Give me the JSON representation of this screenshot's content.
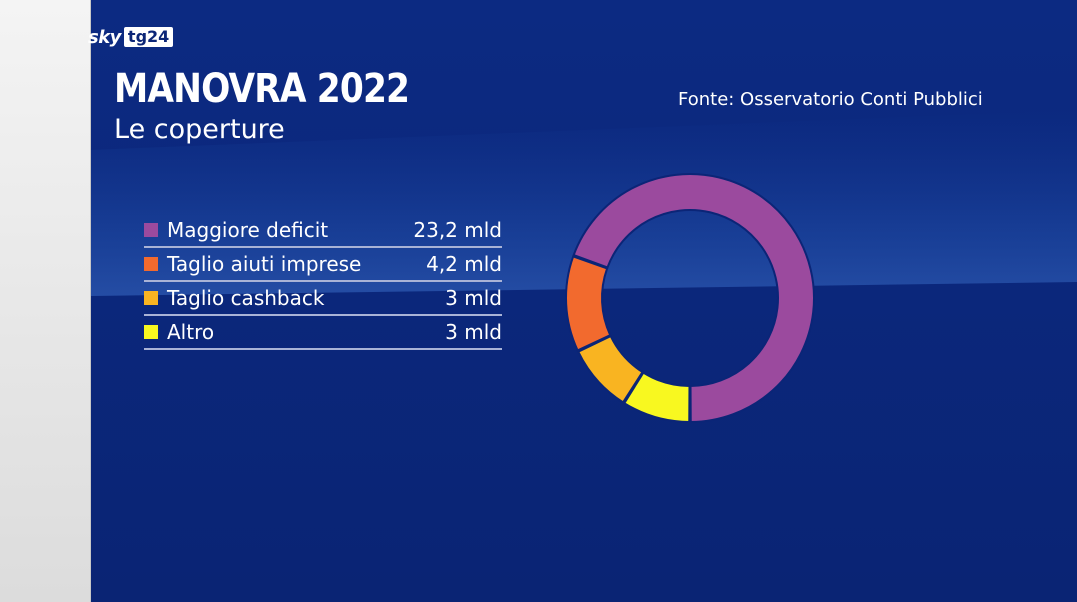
{
  "brand": {
    "sky": "sky",
    "tg": "tg24"
  },
  "header": {
    "title": "MANOVRA 2022",
    "subtitle": "Le coperture",
    "source": "Fonte: Osservatorio Conti Pubblici"
  },
  "colors": {
    "background": "#0b2577",
    "maggiore_deficit": "#9b4a9e",
    "taglio_aiuti_imprese": "#f26a2e",
    "taglio_cashback": "#f9b421",
    "altro": "#f8f820"
  },
  "chart_data": {
    "type": "pie",
    "style": "donut",
    "categories": [
      "Maggiore deficit",
      "Taglio aiuti imprese",
      "Taglio cashback",
      "Altro"
    ],
    "values": [
      23.2,
      4.2,
      3,
      3
    ],
    "labels": [
      "23,2 mld",
      "4,2 mld",
      "3 mld",
      "3 mld"
    ],
    "colors": [
      "#9b4a9e",
      "#f26a2e",
      "#f9b421",
      "#f8f820"
    ],
    "legend_position": "left"
  }
}
